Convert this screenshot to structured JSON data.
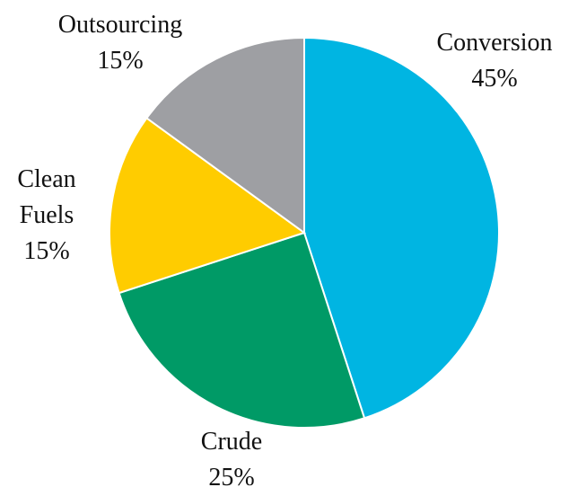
{
  "chart_data": {
    "type": "pie",
    "categories": [
      "Conversion",
      "Crude",
      "Clean Fuels",
      "Outsourcing"
    ],
    "values": [
      45,
      25,
      15,
      15
    ],
    "value_labels": [
      "45%",
      "25%",
      "15%",
      "15%"
    ],
    "colors": [
      "#00b5e2",
      "#009a66",
      "#ffcc00",
      "#9e9fa3"
    ]
  }
}
